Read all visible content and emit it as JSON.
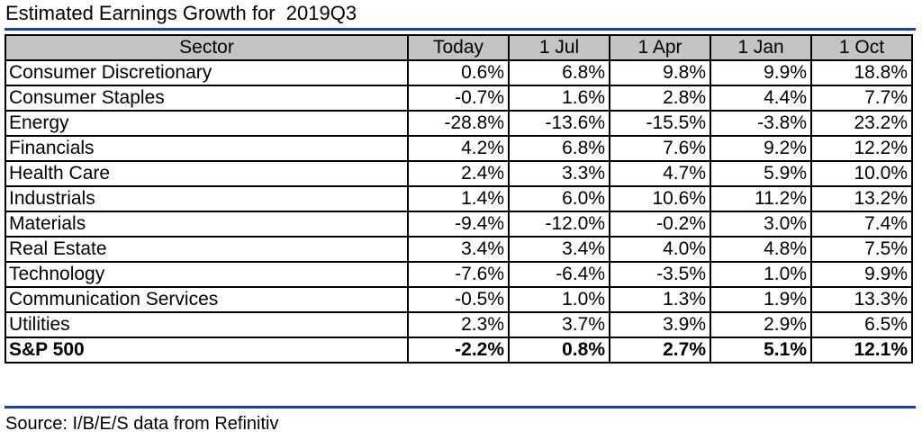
{
  "title": "Estimated Earnings Growth for  2019Q3",
  "columns": [
    "Sector",
    "Today",
    "1 Jul",
    "1 Apr",
    "1 Jan",
    "1 Oct"
  ],
  "rows": [
    {
      "sector": "Consumer Discretionary",
      "values": [
        "0.6%",
        "6.8%",
        "9.8%",
        "9.9%",
        "18.8%"
      ]
    },
    {
      "sector": "Consumer Staples",
      "values": [
        "-0.7%",
        "1.6%",
        "2.8%",
        "4.4%",
        "7.7%"
      ]
    },
    {
      "sector": "Energy",
      "values": [
        "-28.8%",
        "-13.6%",
        "-15.5%",
        "-3.8%",
        "23.2%"
      ]
    },
    {
      "sector": "Financials",
      "values": [
        "4.2%",
        "6.8%",
        "7.6%",
        "9.2%",
        "12.2%"
      ]
    },
    {
      "sector": "Health Care",
      "values": [
        "2.4%",
        "3.3%",
        "4.7%",
        "5.9%",
        "10.0%"
      ]
    },
    {
      "sector": "Industrials",
      "values": [
        "1.4%",
        "6.0%",
        "10.6%",
        "11.2%",
        "13.2%"
      ]
    },
    {
      "sector": "Materials",
      "values": [
        "-9.4%",
        "-12.0%",
        "-0.2%",
        "3.0%",
        "7.4%"
      ]
    },
    {
      "sector": "Real Estate",
      "values": [
        "3.4%",
        "3.4%",
        "4.0%",
        "4.8%",
        "7.5%"
      ]
    },
    {
      "sector": "Technology",
      "values": [
        "-7.6%",
        "-6.4%",
        "-3.5%",
        "1.0%",
        "9.9%"
      ]
    },
    {
      "sector": "Communication Services",
      "values": [
        "-0.5%",
        "1.0%",
        "1.3%",
        "1.9%",
        "13.3%"
      ]
    },
    {
      "sector": "Utilities",
      "values": [
        "2.3%",
        "3.7%",
        "3.9%",
        "2.9%",
        "6.5%"
      ]
    }
  ],
  "total": {
    "sector": "S&P 500",
    "values": [
      "-2.2%",
      "0.8%",
      "2.7%",
      "5.1%",
      "12.1%"
    ]
  },
  "source": "Source: I/B/E/S data from Refinitiv",
  "colors": {
    "rule": "#1f3fa6",
    "header_bg": "#c4c4c4",
    "border": "#000000"
  }
}
